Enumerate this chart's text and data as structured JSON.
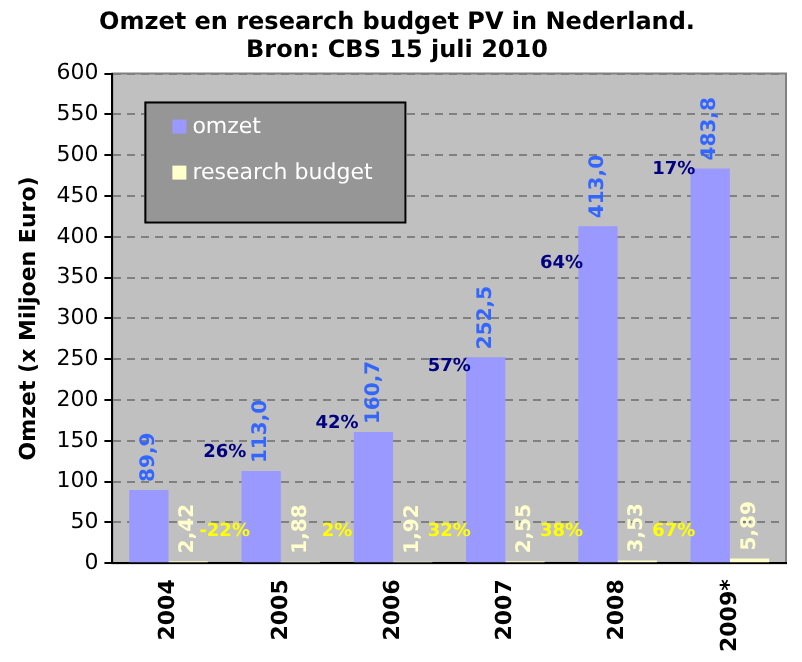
{
  "chart_data": {
    "type": "bar",
    "title": "Omzet en research budget PV in Nederland.",
    "subtitle": "Bron: CBS 15 juli 2010",
    "ylabel": "Omzet (x Miljoen Euro)",
    "categories": [
      "2004",
      "2005",
      "2006",
      "2007",
      "2008",
      "2009*"
    ],
    "series": [
      {
        "name": "omzet",
        "color": "#9999ff",
        "values": [
          89.9,
          113.0,
          160.7,
          252.5,
          413.0,
          483.8
        ],
        "value_labels": [
          "89,9",
          "113,0",
          "160,7",
          "252,5",
          "413,0",
          "483,8"
        ]
      },
      {
        "name": "research budget",
        "color": "#ffffcc",
        "values": [
          2.42,
          1.88,
          1.92,
          2.55,
          3.53,
          5.89
        ],
        "value_labels": [
          "2,42",
          "1,88",
          "1,92",
          "2,55",
          "3,53",
          "5,89"
        ]
      }
    ],
    "ylim": [
      0,
      600
    ],
    "yticks": [
      0,
      50,
      100,
      150,
      200,
      250,
      300,
      350,
      400,
      450,
      500,
      550,
      600
    ],
    "grid": "y",
    "legend": "top left",
    "annotations": [
      "26%",
      "42%",
      "57%",
      "64%",
      "17%",
      "-22%",
      "2%",
      "32%",
      "38%",
      "67%"
    ]
  }
}
